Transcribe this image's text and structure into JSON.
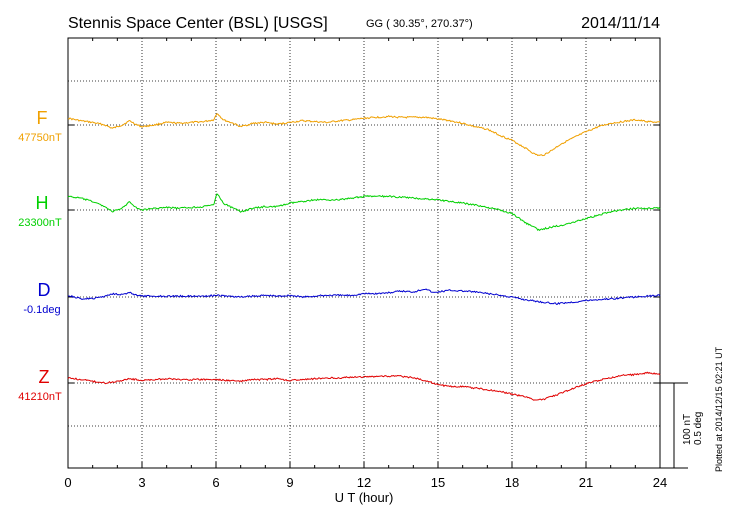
{
  "chart_data": {
    "type": "line",
    "title": "Stennis Space Center (BSL)  [USGS]",
    "coords": "GG ( 30.35°, 270.37°)",
    "date": "2014/11/14",
    "xlabel": "U T (hour)",
    "xlim": [
      0,
      24
    ],
    "xticks": [
      "0",
      "3",
      "6",
      "9",
      "12",
      "15",
      "18",
      "21",
      "24"
    ],
    "grid": true,
    "plotted_note": "Plotted at 2014/12/15 02:21  UT",
    "scale_labels": [
      "100 nT",
      "0.5 deg"
    ],
    "series": [
      {
        "name": "F",
        "baseline_label": "47750nT",
        "unit": "nT",
        "color": "#f0a000",
        "x": [
          0,
          0.5,
          1,
          1.5,
          1.8,
          2.2,
          2.5,
          2.8,
          3,
          3.5,
          4,
          4.5,
          5,
          5.5,
          5.9,
          6.05,
          6.3,
          6.7,
          7,
          7.5,
          8,
          8.5,
          9,
          9.5,
          10,
          10.5,
          11,
          11.5,
          12,
          12.5,
          13,
          13.5,
          14,
          14.5,
          15,
          15.5,
          16,
          16.5,
          17,
          17.5,
          18,
          18.3,
          18.6,
          18.9,
          19.1,
          19.3,
          19.6,
          20,
          20.5,
          21,
          21.5,
          22,
          22.5,
          23,
          23.5,
          24
        ],
        "values": [
          8,
          5,
          3,
          0,
          -4,
          0,
          5,
          0,
          -2,
          0,
          3,
          2,
          3,
          4,
          6,
          14,
          6,
          2,
          -2,
          2,
          3,
          1,
          3,
          5,
          4,
          3,
          5,
          6,
          8,
          9,
          10,
          9,
          9,
          9,
          7,
          5,
          2,
          -2,
          -5,
          -12,
          -18,
          -23,
          -28,
          -34,
          -36,
          -35,
          -30,
          -22,
          -15,
          -8,
          -2,
          2,
          4,
          6,
          4,
          3
        ]
      },
      {
        "name": "H",
        "baseline_label": "23300nT",
        "unit": "nT",
        "color": "#00d000",
        "x": [
          0,
          0.5,
          1,
          1.5,
          1.8,
          2.2,
          2.5,
          2.8,
          3,
          3.5,
          4,
          4.5,
          5,
          5.5,
          5.9,
          6.05,
          6.3,
          6.7,
          7,
          7.5,
          8,
          8.5,
          9,
          9.5,
          10,
          10.5,
          11,
          11.5,
          12,
          12.5,
          13,
          13.5,
          14,
          14.5,
          15,
          15.5,
          16,
          16.5,
          17,
          17.5,
          18,
          18.3,
          18.6,
          18.9,
          19.1,
          19.3,
          19.6,
          20,
          20.5,
          21,
          21.5,
          22,
          22.5,
          23,
          23.5,
          24
        ],
        "values": [
          16,
          14,
          10,
          4,
          -2,
          2,
          10,
          2,
          0,
          2,
          3,
          2,
          3,
          4,
          6,
          20,
          8,
          2,
          -2,
          2,
          4,
          4,
          8,
          10,
          12,
          12,
          12,
          14,
          16,
          16,
          16,
          15,
          14,
          13,
          12,
          10,
          8,
          6,
          3,
          0,
          -4,
          -10,
          -16,
          -20,
          -24,
          -22,
          -20,
          -18,
          -14,
          -10,
          -6,
          -2,
          0,
          2,
          2,
          2
        ]
      },
      {
        "name": "D",
        "baseline_label": "-0.1deg",
        "unit": "deg",
        "color": "#0000d0",
        "x": [
          0,
          0.5,
          1,
          1.5,
          1.8,
          2.2,
          2.5,
          2.8,
          3,
          3.5,
          4,
          4.5,
          5,
          5.5,
          6,
          6.5,
          7,
          7.5,
          8,
          8.5,
          9,
          9.5,
          10,
          10.5,
          11,
          11.5,
          12,
          12.5,
          13,
          13.5,
          14,
          14.5,
          14.8,
          15,
          15.5,
          16,
          16.5,
          17,
          17.5,
          18,
          18.5,
          19,
          19.5,
          19.8,
          20,
          20.5,
          21,
          21.5,
          22,
          22.5,
          23,
          23.5,
          24
        ],
        "values": [
          0.01,
          -0.01,
          -0.01,
          0.005,
          0.02,
          0.015,
          0.025,
          0.01,
          0.005,
          0.005,
          0.005,
          0.005,
          0.005,
          0.005,
          0.01,
          0.005,
          0.0,
          0.005,
          0.01,
          0.005,
          0.01,
          0.0,
          0.005,
          0.01,
          0.01,
          0.01,
          0.02,
          0.02,
          0.025,
          0.035,
          0.03,
          0.05,
          0.025,
          0.03,
          0.04,
          0.035,
          0.03,
          0.02,
          0.01,
          0.0,
          -0.015,
          -0.025,
          -0.035,
          -0.04,
          -0.035,
          -0.03,
          -0.02,
          -0.015,
          -0.01,
          -0.005,
          0.0,
          0.005,
          0.01
        ]
      },
      {
        "name": "Z",
        "baseline_label": "41210nT",
        "unit": "nT",
        "color": "#e00000",
        "x": [
          0,
          0.5,
          1,
          1.5,
          2,
          2.5,
          3,
          3.5,
          4,
          4.5,
          5,
          5.5,
          6,
          6.5,
          7,
          7.5,
          8,
          8.5,
          9,
          9.5,
          10,
          10.5,
          11,
          11.5,
          12,
          12.5,
          13,
          13.5,
          14,
          14.5,
          15,
          15.5,
          16,
          16.5,
          17,
          17.5,
          18,
          18.5,
          18.8,
          19,
          19.3,
          19.6,
          20,
          20.5,
          21,
          21.5,
          22,
          22.5,
          23,
          23.5,
          24
        ],
        "values": [
          6,
          4,
          2,
          0,
          2,
          5,
          3,
          4,
          5,
          4,
          4,
          4,
          4,
          3,
          2,
          4,
          4,
          5,
          3,
          4,
          5,
          6,
          6,
          7,
          7,
          8,
          8,
          8,
          6,
          3,
          -2,
          -4,
          -4,
          -6,
          -8,
          -10,
          -13,
          -16,
          -19,
          -20,
          -19,
          -16,
          -12,
          -6,
          -1,
          3,
          6,
          9,
          10,
          12,
          10
        ]
      }
    ]
  }
}
